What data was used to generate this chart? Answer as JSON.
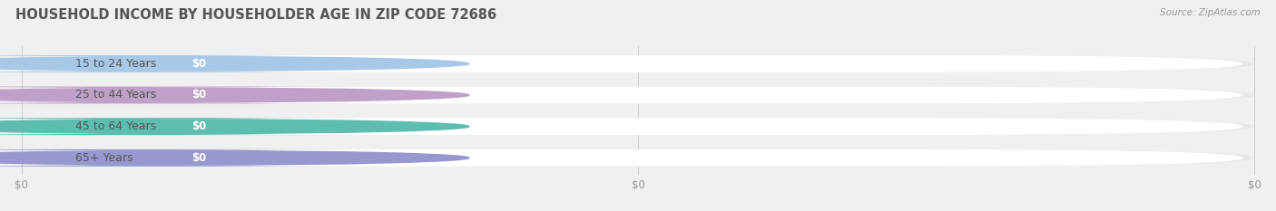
{
  "title": "HOUSEHOLD INCOME BY HOUSEHOLDER AGE IN ZIP CODE 72686",
  "source": "Source: ZipAtlas.com",
  "categories": [
    "15 to 24 Years",
    "25 to 44 Years",
    "45 to 64 Years",
    "65+ Years"
  ],
  "values": [
    0,
    0,
    0,
    0
  ],
  "bar_colors": [
    "#a8c8e8",
    "#c0a0c8",
    "#5dbdb0",
    "#9898d0"
  ],
  "bar_bg_color": "#e8e8e8",
  "bar_inner_color": "#ffffff",
  "title_color": "#555555",
  "label_color": "#555555",
  "value_label_color": "#ffffff",
  "tick_label_color": "#999999",
  "source_color": "#999999",
  "background_color": "#f0f0f0",
  "figsize": [
    14.06,
    2.33
  ],
  "dpi": 100
}
